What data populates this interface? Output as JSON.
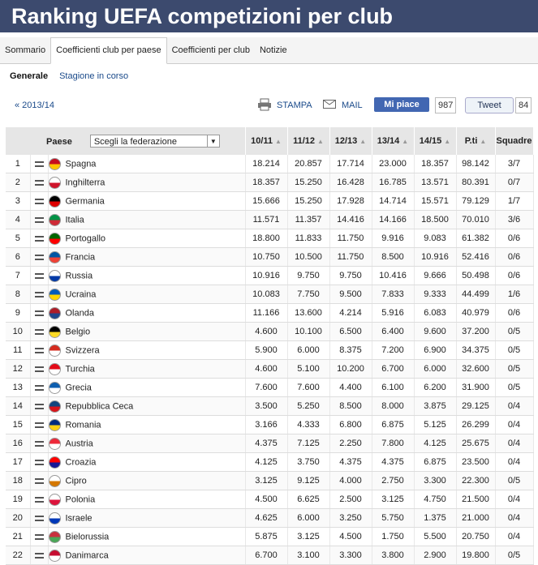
{
  "header": {
    "title": "Ranking UEFA competizioni per club"
  },
  "tabs": [
    "Sommario",
    "Coefficienti club per paese",
    "Coefficienti per club",
    "Notizie"
  ],
  "subtabs": [
    "Generale",
    "Stagione in corso"
  ],
  "toolbar": {
    "previous": "« 2013/14",
    "print": "STAMPA",
    "mail": "MAIL",
    "like": "Mi piace",
    "like_count": "987",
    "tweet": "Tweet",
    "tweet_count": "84"
  },
  "table": {
    "country_header": "Paese",
    "filter": "Scegli la federazione",
    "headers": [
      "10/11",
      "11/12",
      "12/13",
      "13/14",
      "14/15",
      "P.ti",
      "Squadre"
    ],
    "rows": [
      [
        "1",
        "Spagna",
        "18.214",
        "20.857",
        "17.714",
        "23.000",
        "18.357",
        "98.142",
        "3/7"
      ],
      [
        "2",
        "Inghilterra",
        "18.357",
        "15.250",
        "16.428",
        "16.785",
        "13.571",
        "80.391",
        "0/7"
      ],
      [
        "3",
        "Germania",
        "15.666",
        "15.250",
        "17.928",
        "14.714",
        "15.571",
        "79.129",
        "1/7"
      ],
      [
        "4",
        "Italia",
        "11.571",
        "11.357",
        "14.416",
        "14.166",
        "18.500",
        "70.010",
        "3/6"
      ],
      [
        "5",
        "Portogallo",
        "18.800",
        "11.833",
        "11.750",
        "9.916",
        "9.083",
        "61.382",
        "0/6"
      ],
      [
        "6",
        "Francia",
        "10.750",
        "10.500",
        "11.750",
        "8.500",
        "10.916",
        "52.416",
        "0/6"
      ],
      [
        "7",
        "Russia",
        "10.916",
        "9.750",
        "9.750",
        "10.416",
        "9.666",
        "50.498",
        "0/6"
      ],
      [
        "8",
        "Ucraina",
        "10.083",
        "7.750",
        "9.500",
        "7.833",
        "9.333",
        "44.499",
        "1/6"
      ],
      [
        "9",
        "Olanda",
        "11.166",
        "13.600",
        "4.214",
        "5.916",
        "6.083",
        "40.979",
        "0/6"
      ],
      [
        "10",
        "Belgio",
        "4.600",
        "10.100",
        "6.500",
        "6.400",
        "9.600",
        "37.200",
        "0/5"
      ],
      [
        "11",
        "Svizzera",
        "5.900",
        "6.000",
        "8.375",
        "7.200",
        "6.900",
        "34.375",
        "0/5"
      ],
      [
        "12",
        "Turchia",
        "4.600",
        "5.100",
        "10.200",
        "6.700",
        "6.000",
        "32.600",
        "0/5"
      ],
      [
        "13",
        "Grecia",
        "7.600",
        "7.600",
        "4.400",
        "6.100",
        "6.200",
        "31.900",
        "0/5"
      ],
      [
        "14",
        "Repubblica Ceca",
        "3.500",
        "5.250",
        "8.500",
        "8.000",
        "3.875",
        "29.125",
        "0/4"
      ],
      [
        "15",
        "Romania",
        "3.166",
        "4.333",
        "6.800",
        "6.875",
        "5.125",
        "26.299",
        "0/4"
      ],
      [
        "16",
        "Austria",
        "4.375",
        "7.125",
        "2.250",
        "7.800",
        "4.125",
        "25.675",
        "0/4"
      ],
      [
        "17",
        "Croazia",
        "4.125",
        "3.750",
        "4.375",
        "4.375",
        "6.875",
        "23.500",
        "0/4"
      ],
      [
        "18",
        "Cipro",
        "3.125",
        "9.125",
        "4.000",
        "2.750",
        "3.300",
        "22.300",
        "0/5"
      ],
      [
        "19",
        "Polonia",
        "4.500",
        "6.625",
        "2.500",
        "3.125",
        "4.750",
        "21.500",
        "0/4"
      ],
      [
        "20",
        "Israele",
        "4.625",
        "6.000",
        "3.250",
        "5.750",
        "1.375",
        "21.000",
        "0/4"
      ],
      [
        "21",
        "Bielorussia",
        "5.875",
        "3.125",
        "4.500",
        "1.750",
        "5.500",
        "20.750",
        "0/4"
      ],
      [
        "22",
        "Danimarca",
        "6.700",
        "3.100",
        "3.300",
        "3.800",
        "2.900",
        "19.800",
        "0/5"
      ]
    ]
  }
}
